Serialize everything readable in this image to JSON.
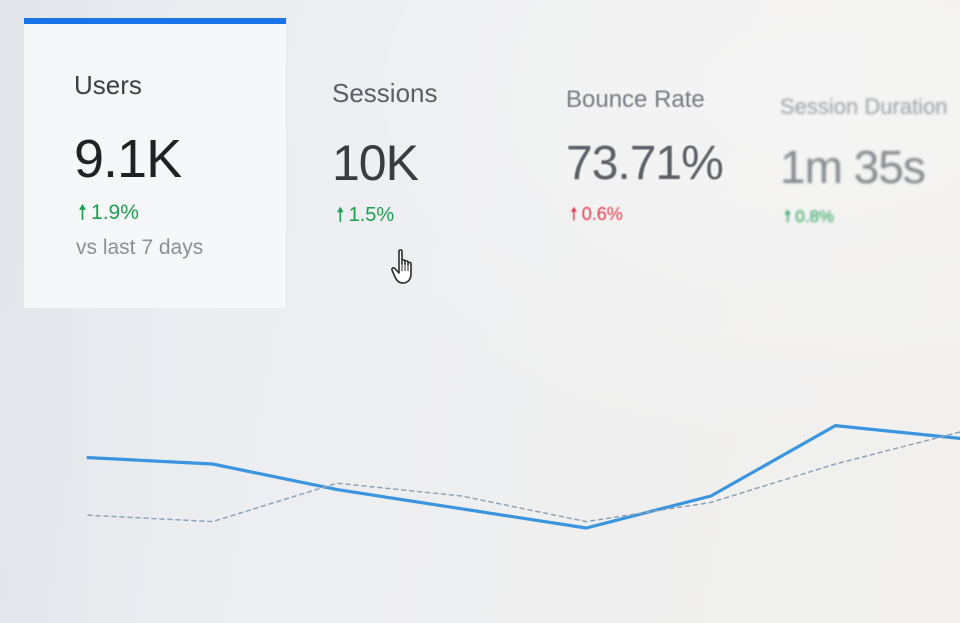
{
  "colors": {
    "accent": "#1a73e8",
    "up": "#1e9e50",
    "down": "#e8394a",
    "line_current": "#3a95de",
    "line_previous": "#8fa3b8"
  },
  "tabs": [
    {
      "id": "users",
      "label": "Users",
      "value": "9.1K",
      "change": "1.9%",
      "direction": "up",
      "comparison": "vs last 7 days",
      "active": true
    },
    {
      "id": "sessions",
      "label": "Sessions",
      "value": "10K",
      "change": "1.5%",
      "direction": "up",
      "active": false
    },
    {
      "id": "bounce",
      "label": "Bounce Rate",
      "value": "73.71%",
      "change": "0.6%",
      "direction": "up",
      "active": false
    },
    {
      "id": "duration",
      "label": "Session Duration",
      "value": "1m 35s",
      "change": "0.8%",
      "direction": "up",
      "active": false
    }
  ],
  "icons": {
    "arrow_up": "arrow-up-icon",
    "cursor": "hand-pointer-icon"
  },
  "chart_data": {
    "type": "line",
    "series": [
      {
        "values": [
          9.1,
          9.0,
          8.6,
          8.3,
          8.0,
          8.5,
          9.6,
          9.4
        ]
      },
      {
        "values": [
          8.2,
          8.1,
          8.7,
          8.5,
          8.1,
          8.4,
          9.0,
          9.5
        ]
      }
    ],
    "ylim": [
      7.5,
      10
    ],
    "grid": false,
    "legend": "none"
  }
}
